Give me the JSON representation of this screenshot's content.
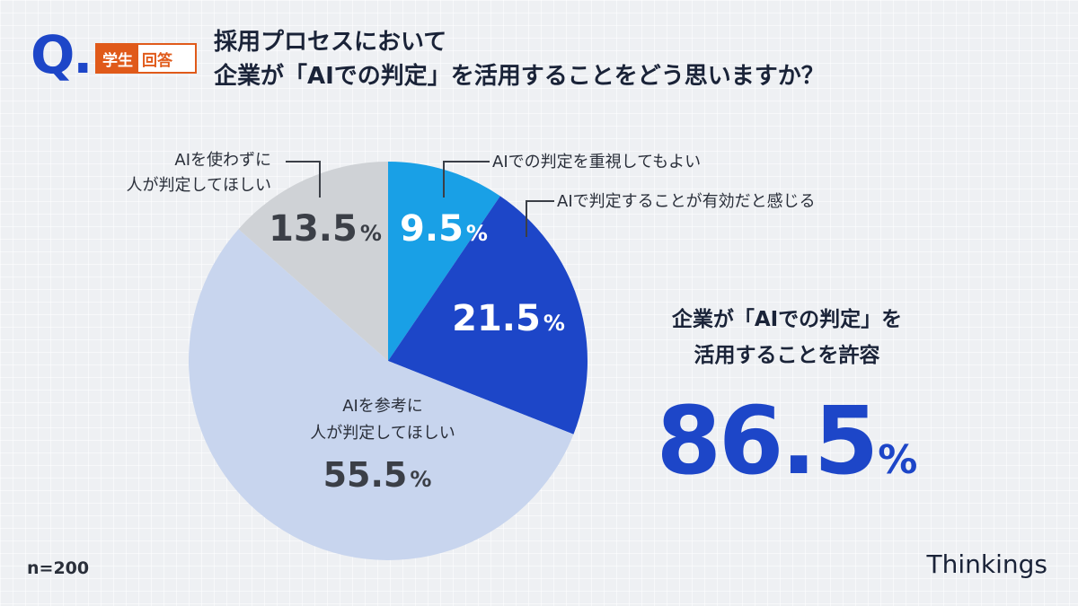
{
  "header": {
    "q_mark": "Q.",
    "badge_part1": "学生",
    "badge_part2": "回答",
    "title_line1": "採用プロセスにおいて",
    "title_line2": "企業が「AIでの判定」を活用することをどう思いますか？"
  },
  "chart_data": {
    "type": "pie",
    "start": "12 o'clock",
    "direction": "clockwise",
    "slices": [
      {
        "label": "AIでの判定を重視してもよい",
        "label_lines": [
          "AIでの判定を重視してもよい"
        ],
        "value": 9.5,
        "value_text": "9.5",
        "color": "#19a0e6",
        "value_color": "#ffffff"
      },
      {
        "label": "AIで判定することが有効だと感じる",
        "label_lines": [
          "AIで判定することが有効だと感じる"
        ],
        "value": 21.5,
        "value_text": "21.5",
        "color": "#1d46c8",
        "value_color": "#ffffff"
      },
      {
        "label": "AIを参考に人が判定してほしい",
        "label_lines": [
          "AIを参考に",
          "人が判定してほしい"
        ],
        "value": 55.5,
        "value_text": "55.5",
        "color": "#c8d5ee",
        "value_color": "#3b3f47"
      },
      {
        "label": "AIを使わずに人が判定してほしい",
        "label_lines": [
          "AIを使わずに",
          "人が判定してほしい"
        ],
        "value": 13.5,
        "value_text": "13.5",
        "color": "#cfd2d6",
        "value_color": "#3b3f47"
      }
    ],
    "percent_sign": "%"
  },
  "callout": {
    "line1": "企業が「AIでの判定」を",
    "line2": "活用することを許容",
    "value": "86.5",
    "unit": "%"
  },
  "footer": {
    "sample_size": "n=200",
    "brand": "Thinkings"
  }
}
